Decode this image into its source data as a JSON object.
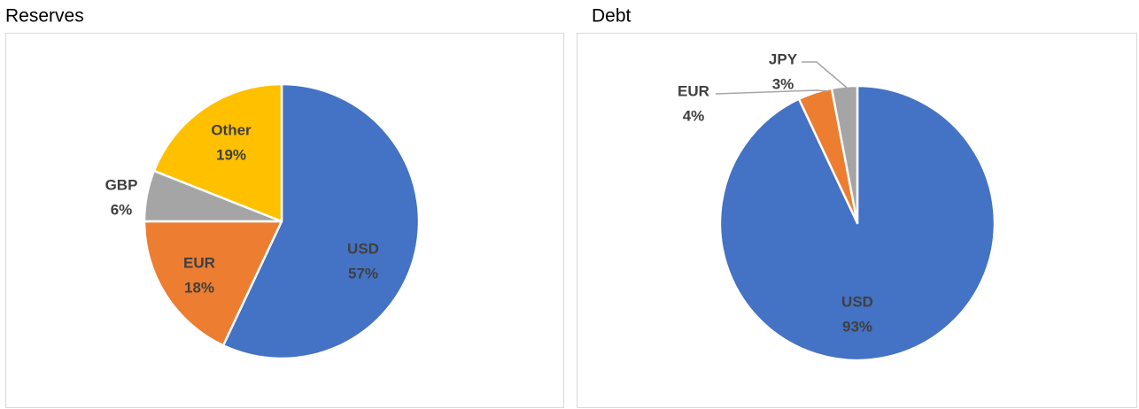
{
  "chart_data": [
    {
      "type": "pie",
      "title": "Reserves",
      "categories": [
        "USD",
        "EUR",
        "GBP",
        "Other"
      ],
      "values": [
        57,
        18,
        6,
        19
      ],
      "value_labels": [
        "57%",
        "18%",
        "6%",
        "19%"
      ],
      "colors": [
        "#4472c4",
        "#ed7d31",
        "#a5a5a5",
        "#ffc000"
      ]
    },
    {
      "type": "pie",
      "title": "Debt",
      "categories": [
        "USD",
        "EUR",
        "JPY"
      ],
      "values": [
        93,
        4,
        3
      ],
      "value_labels": [
        "93%",
        "4%",
        "3%"
      ],
      "colors": [
        "#4472c4",
        "#ed7d31",
        "#a5a5a5"
      ]
    }
  ]
}
